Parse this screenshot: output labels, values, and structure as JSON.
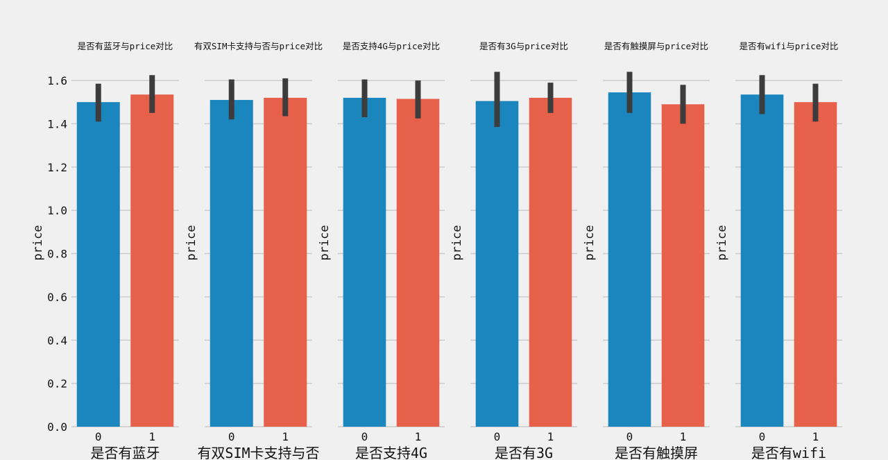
{
  "colors": {
    "background": "#f0f0f0",
    "grid": "#cbcbcb",
    "bar_0": "#1a86bd",
    "bar_1": "#e6604a",
    "error_bar": "#3c3c3c"
  },
  "chart_data": [
    {
      "type": "bar",
      "title": "是否有蓝牙与price对比",
      "xlabel": "是否有蓝牙",
      "ylabel": "price",
      "categories": [
        "0",
        "1"
      ],
      "values": [
        1.5,
        1.535
      ],
      "ci": [
        [
          1.41,
          1.585
        ],
        [
          1.45,
          1.625
        ]
      ],
      "ylim": [
        0,
        1.6
      ],
      "yticks": [
        "0.0",
        "0.2",
        "0.4",
        "0.6",
        "0.8",
        "1.0",
        "1.2",
        "1.4",
        "1.6"
      ],
      "grid": true
    },
    {
      "type": "bar",
      "title": "有双SIM卡支持与否与price对比",
      "xlabel": "有双SIM卡支持与否",
      "ylabel": "price",
      "categories": [
        "0",
        "1"
      ],
      "values": [
        1.51,
        1.52
      ],
      "ci": [
        [
          1.42,
          1.605
        ],
        [
          1.435,
          1.61
        ]
      ],
      "ylim": [
        0,
        1.6
      ],
      "grid": true
    },
    {
      "type": "bar",
      "title": "是否支持4G与price对比",
      "xlabel": "是否支持4G",
      "ylabel": "price",
      "categories": [
        "0",
        "1"
      ],
      "values": [
        1.52,
        1.515
      ],
      "ci": [
        [
          1.43,
          1.605
        ],
        [
          1.425,
          1.6
        ]
      ],
      "ylim": [
        0,
        1.6
      ],
      "grid": true
    },
    {
      "type": "bar",
      "title": "是否有3G与price对比",
      "xlabel": "是否有3G",
      "ylabel": "price",
      "categories": [
        "0",
        "1"
      ],
      "values": [
        1.505,
        1.52
      ],
      "ci": [
        [
          1.385,
          1.64
        ],
        [
          1.45,
          1.59
        ]
      ],
      "ylim": [
        0,
        1.6
      ],
      "grid": true
    },
    {
      "type": "bar",
      "title": "是否有触摸屏与price对比",
      "xlabel": "是否有触摸屏",
      "ylabel": "price",
      "categories": [
        "0",
        "1"
      ],
      "values": [
        1.545,
        1.49
      ],
      "ci": [
        [
          1.45,
          1.64
        ],
        [
          1.4,
          1.58
        ]
      ],
      "ylim": [
        0,
        1.6
      ],
      "grid": true
    },
    {
      "type": "bar",
      "title": "是否有wifi与price对比",
      "xlabel": "是否有wifi",
      "ylabel": "price",
      "categories": [
        "0",
        "1"
      ],
      "values": [
        1.535,
        1.5
      ],
      "ci": [
        [
          1.445,
          1.625
        ],
        [
          1.41,
          1.585
        ]
      ],
      "ylim": [
        0,
        1.6
      ],
      "grid": true
    }
  ]
}
